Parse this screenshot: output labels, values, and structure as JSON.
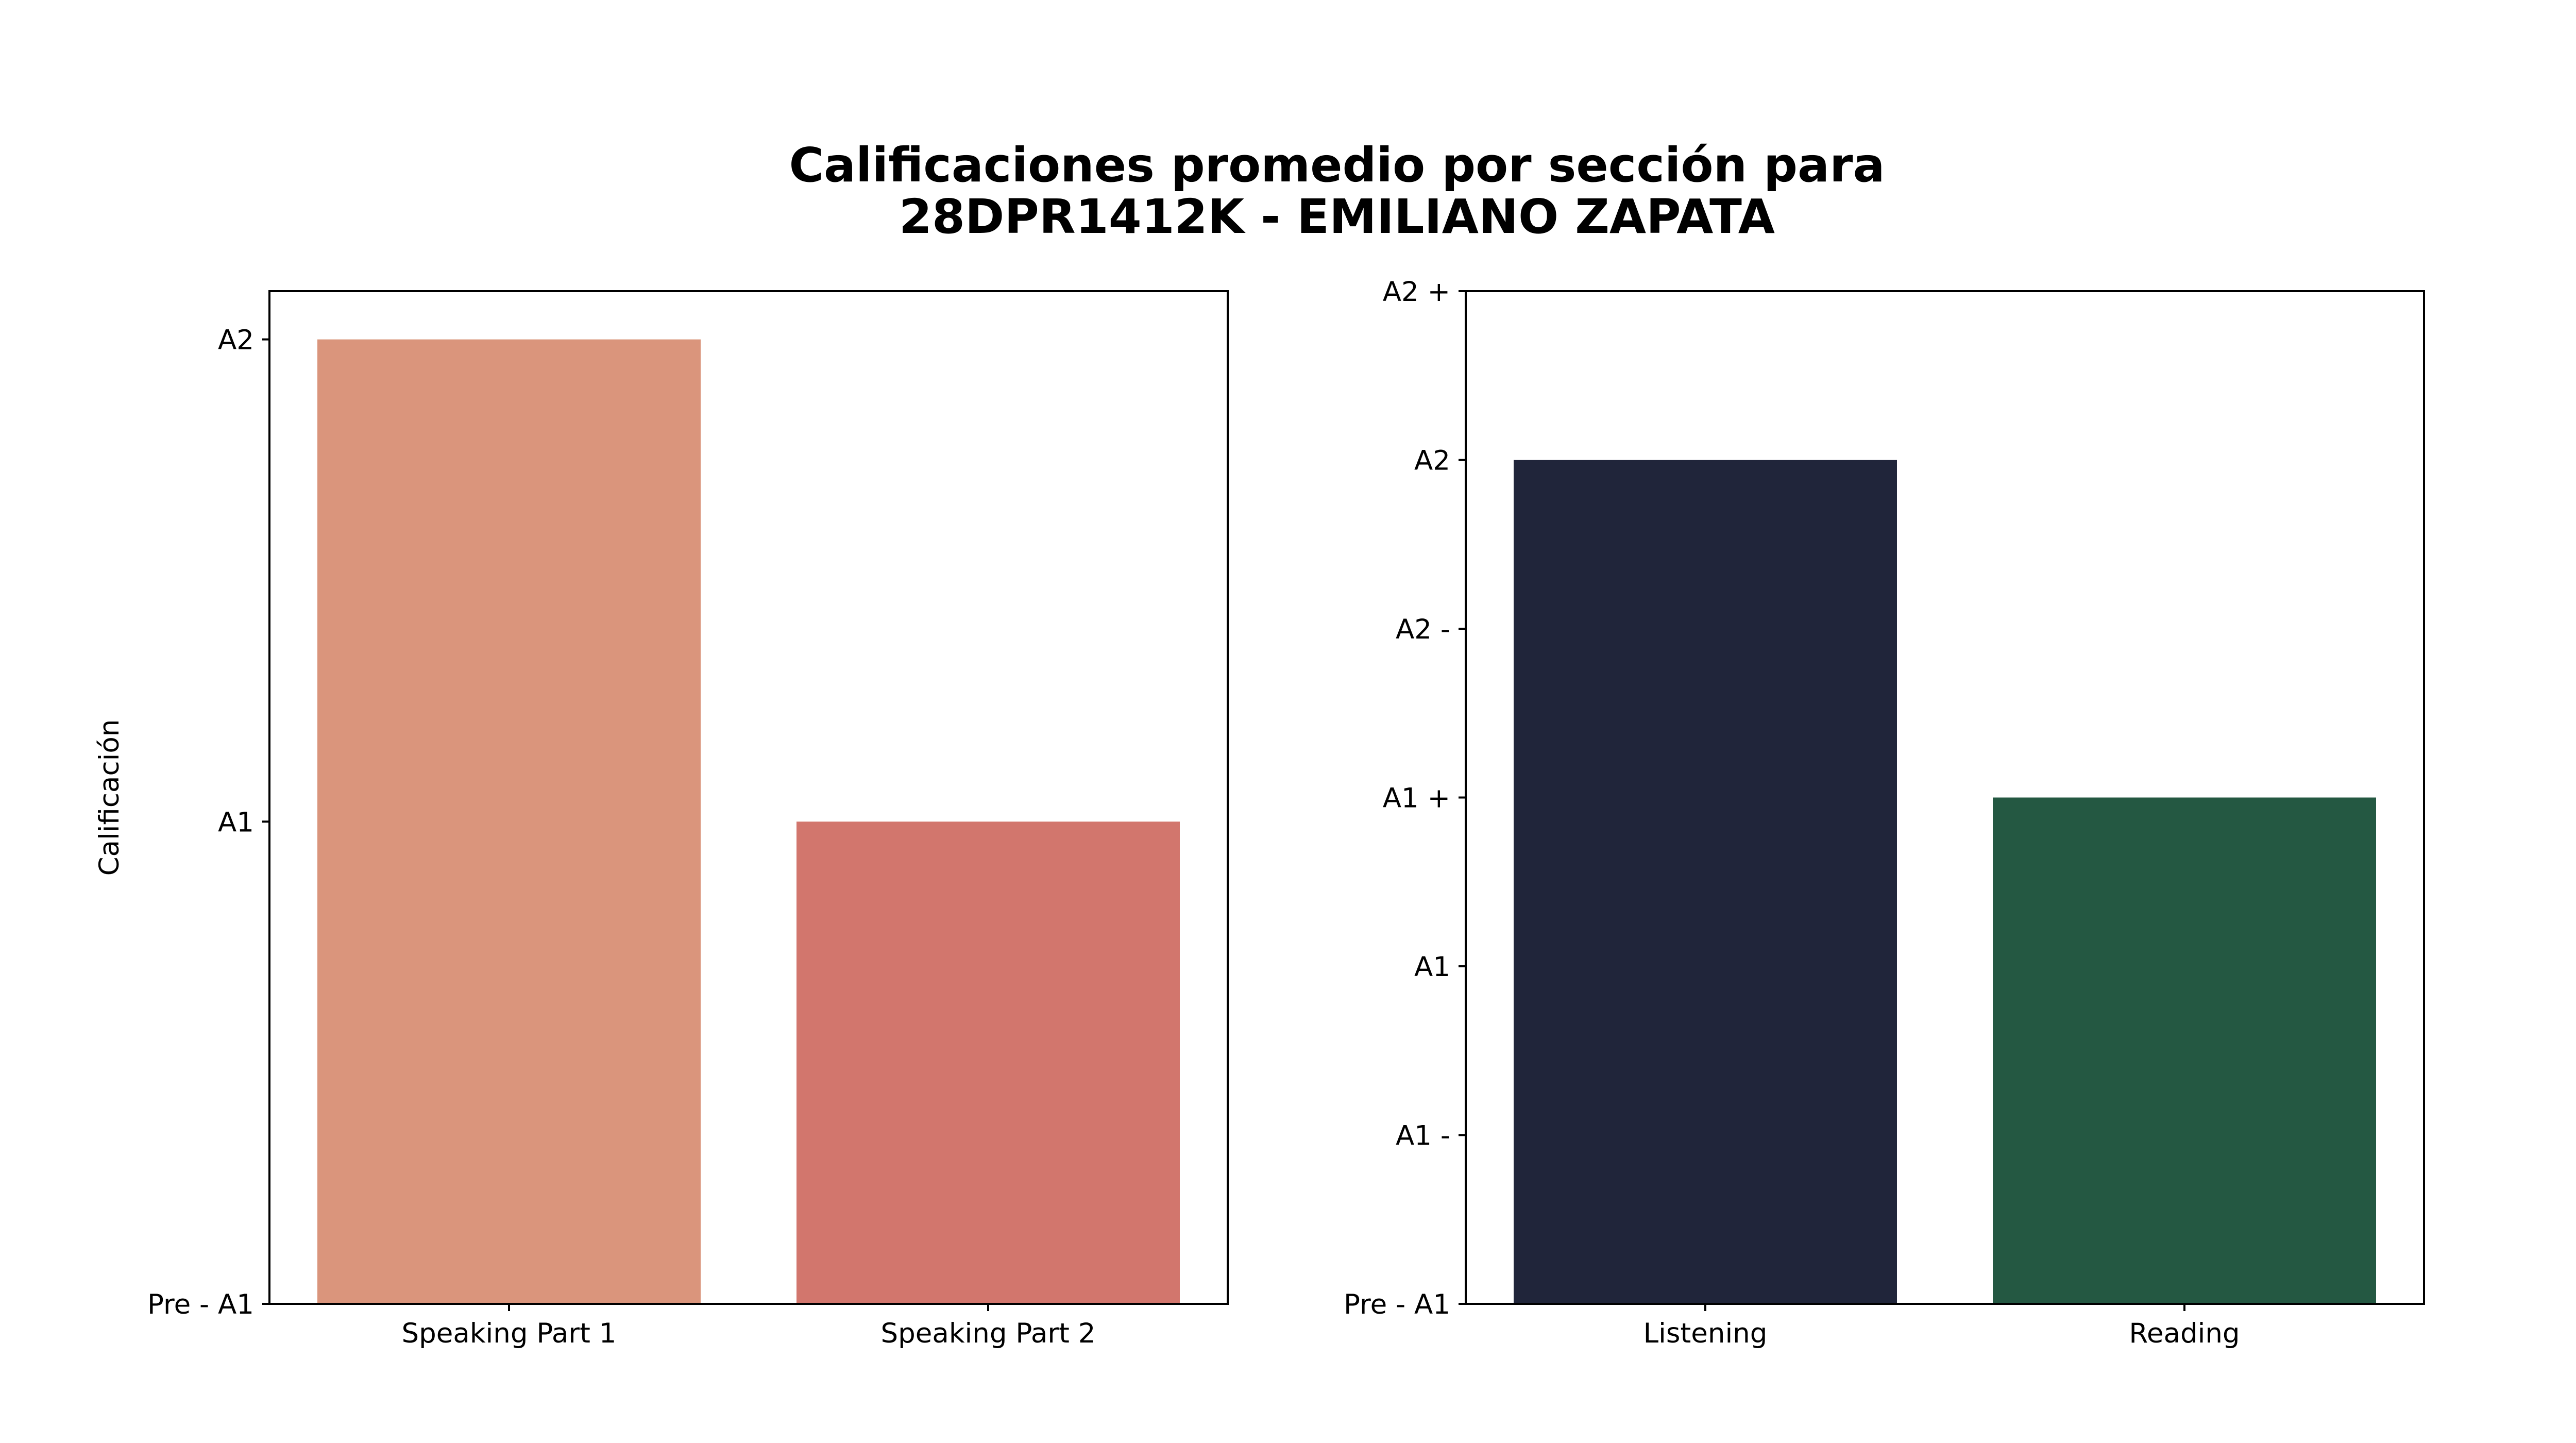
{
  "figure": {
    "title_line1": "Calificaciones promedio por sección para",
    "title_line2": "28DPR1412K - EMILIANO ZAPATA"
  },
  "chart_data": [
    {
      "type": "bar",
      "categories": [
        "Speaking Part 1",
        "Speaking Part 2"
      ],
      "values": [
        2,
        1
      ],
      "colors": [
        "#da957c",
        "#d2766d"
      ],
      "ylabel": "Calificación",
      "xlabel": "",
      "ylim": [
        0,
        2.1
      ],
      "yticks": [
        {
          "value": 0,
          "label": "Pre - A1"
        },
        {
          "value": 1,
          "label": "A1"
        },
        {
          "value": 2,
          "label": "A2"
        }
      ]
    },
    {
      "type": "bar",
      "categories": [
        "Listening",
        "Reading"
      ],
      "values": [
        5,
        3
      ],
      "colors": [
        "#20253a",
        "#245842"
      ],
      "ylabel": "",
      "xlabel": "",
      "ylim": [
        0,
        6
      ],
      "yticks": [
        {
          "value": 0,
          "label": "Pre - A1"
        },
        {
          "value": 1,
          "label": "A1 -"
        },
        {
          "value": 2,
          "label": "A1"
        },
        {
          "value": 3,
          "label": "A1 +"
        },
        {
          "value": 4,
          "label": "A2 -"
        },
        {
          "value": 5,
          "label": "A2"
        },
        {
          "value": 6,
          "label": "A2 +"
        }
      ]
    }
  ]
}
